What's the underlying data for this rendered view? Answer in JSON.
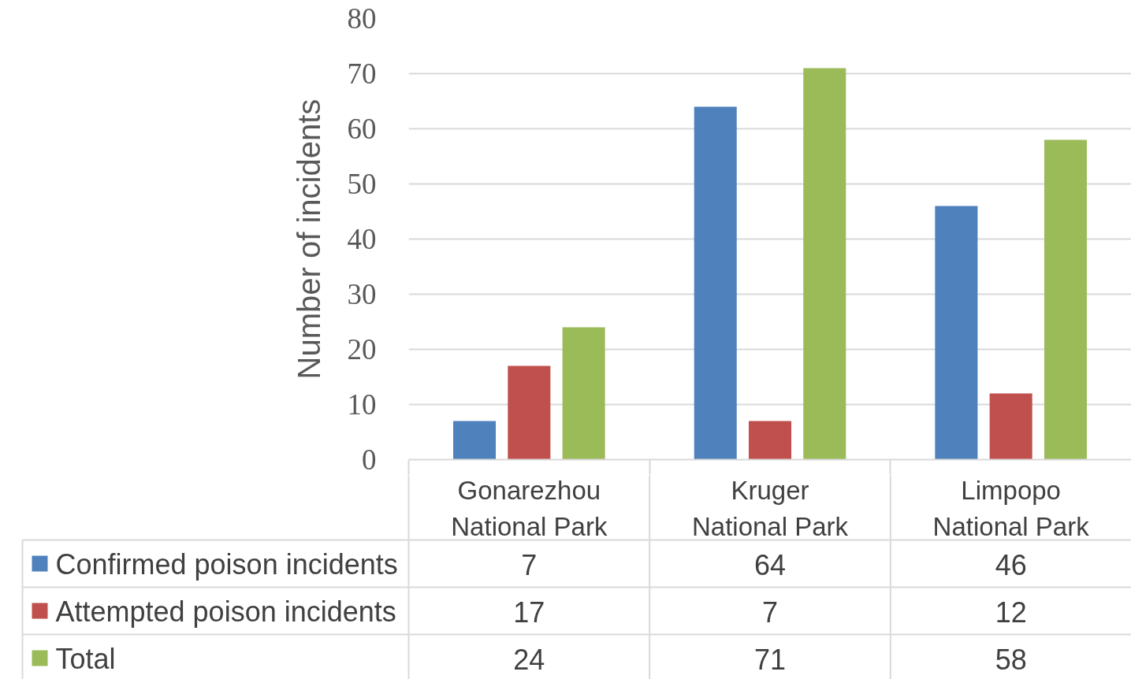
{
  "chart_data": {
    "type": "bar",
    "ylabel": "Number of incidents",
    "categories": [
      "Gonarezhou National Park",
      "Kruger National Park",
      "Limpopo National Park"
    ],
    "series": [
      {
        "name": "Confirmed poison incidents",
        "color": "#4f81bd",
        "values": [
          7,
          64,
          46
        ]
      },
      {
        "name": "Attempted poison incidents",
        "color": "#c0504d",
        "values": [
          17,
          7,
          12
        ]
      },
      {
        "name": "Total",
        "color": "#9bbb59",
        "values": [
          24,
          71,
          58
        ]
      }
    ],
    "ylim": [
      0,
      80
    ],
    "yticks": [
      0,
      10,
      20,
      30,
      40,
      50,
      60,
      70,
      80
    ],
    "grid": "y",
    "legend": "bottom",
    "data_labels": true
  }
}
